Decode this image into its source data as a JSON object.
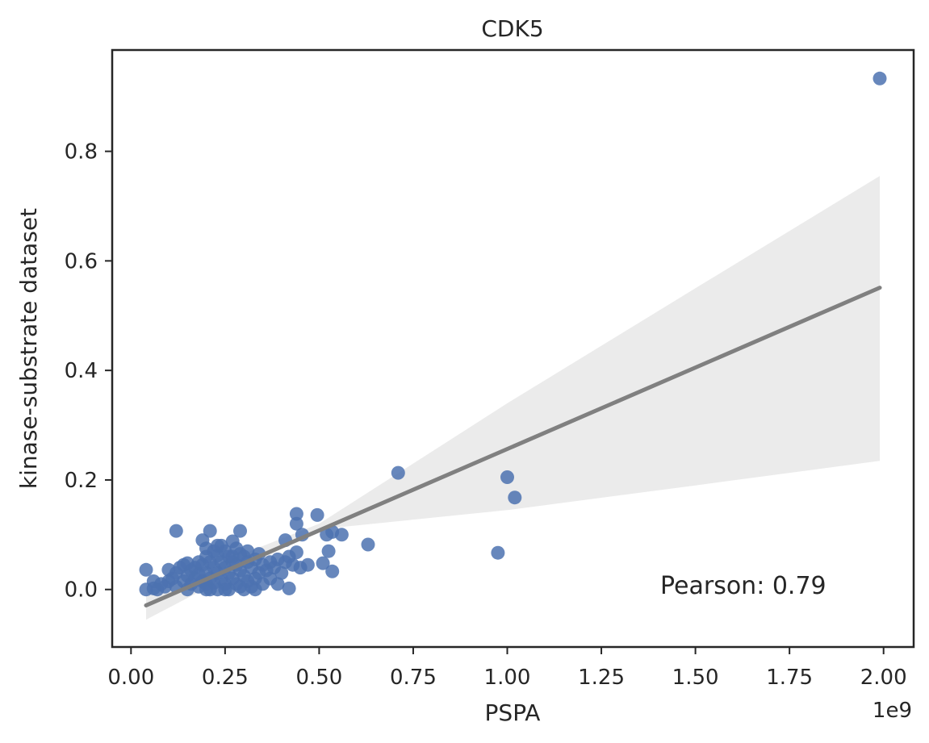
{
  "chart_data": {
    "type": "scatter",
    "title": "CDK5",
    "xlabel": "PSPA",
    "ylabel": "kinase-substrate dataset",
    "x_offset_label": "1e9",
    "annotation": "Pearson: 0.79",
    "xlim": [
      -0.05,
      2.08
    ],
    "ylim": [
      -0.105,
      0.985
    ],
    "x_ticks": [
      0.0,
      0.25,
      0.5,
      0.75,
      1.0,
      1.25,
      1.5,
      1.75,
      2.0
    ],
    "x_tick_labels": [
      "0.00",
      "0.25",
      "0.50",
      "0.75",
      "1.00",
      "1.25",
      "1.50",
      "1.75",
      "2.00"
    ],
    "y_ticks": [
      0.0,
      0.2,
      0.4,
      0.6,
      0.8
    ],
    "y_tick_labels": [
      "0.0",
      "0.2",
      "0.4",
      "0.6",
      "0.8"
    ],
    "grid": false,
    "colors": {
      "points": "#4C72B0",
      "fit_line": "#808080",
      "ci_band": "#EBEBEB",
      "axes": "#262626"
    },
    "regression": {
      "x_range": [
        0.04,
        1.99
      ],
      "line": [
        [
          0.04,
          -0.029
        ],
        [
          1.99,
          0.551
        ]
      ],
      "ci_band": {
        "x": [
          0.04,
          0.5,
          1.0,
          1.5,
          1.99
        ],
        "lower": [
          -0.055,
          0.11,
          0.145,
          0.19,
          0.235
        ],
        "upper": [
          -0.005,
          0.12,
          0.34,
          0.55,
          0.755
        ]
      }
    },
    "points": [
      [
        1.99,
        0.933
      ],
      [
        0.71,
        0.213
      ],
      [
        1.0,
        0.205
      ],
      [
        1.02,
        0.168
      ],
      [
        0.975,
        0.067
      ],
      [
        0.63,
        0.082
      ],
      [
        0.44,
        0.138
      ],
      [
        0.495,
        0.136
      ],
      [
        0.44,
        0.12
      ],
      [
        0.52,
        0.1
      ],
      [
        0.535,
        0.105
      ],
      [
        0.56,
        0.1
      ],
      [
        0.455,
        0.1
      ],
      [
        0.525,
        0.07
      ],
      [
        0.51,
        0.048
      ],
      [
        0.535,
        0.033
      ],
      [
        0.47,
        0.045
      ],
      [
        0.45,
        0.04
      ],
      [
        0.41,
        0.09
      ],
      [
        0.42,
        0.002
      ],
      [
        0.39,
        0.01
      ],
      [
        0.44,
        0.068
      ],
      [
        0.12,
        0.107
      ],
      [
        0.21,
        0.107
      ],
      [
        0.29,
        0.107
      ],
      [
        0.19,
        0.09
      ],
      [
        0.27,
        0.088
      ],
      [
        0.04,
        0.036
      ],
      [
        0.04,
        0.0
      ],
      [
        0.06,
        0.015
      ],
      [
        0.06,
        0.002
      ],
      [
        0.07,
        0.0
      ],
      [
        0.08,
        0.01
      ],
      [
        0.09,
        0.005
      ],
      [
        0.1,
        0.036
      ],
      [
        0.1,
        0.015
      ],
      [
        0.11,
        0.02
      ],
      [
        0.12,
        0.03
      ],
      [
        0.12,
        0.005
      ],
      [
        0.13,
        0.04
      ],
      [
        0.14,
        0.045
      ],
      [
        0.14,
        0.015
      ],
      [
        0.15,
        0.048
      ],
      [
        0.15,
        0.025
      ],
      [
        0.15,
        0.0
      ],
      [
        0.16,
        0.035
      ],
      [
        0.16,
        0.01
      ],
      [
        0.17,
        0.02
      ],
      [
        0.17,
        0.04
      ],
      [
        0.18,
        0.028
      ],
      [
        0.18,
        0.005
      ],
      [
        0.19,
        0.045
      ],
      [
        0.19,
        0.015
      ],
      [
        0.2,
        0.075
      ],
      [
        0.2,
        0.06
      ],
      [
        0.2,
        0.03
      ],
      [
        0.2,
        0.01
      ],
      [
        0.21,
        0.05
      ],
      [
        0.21,
        0.02
      ],
      [
        0.21,
        0.0
      ],
      [
        0.22,
        0.07
      ],
      [
        0.22,
        0.04
      ],
      [
        0.22,
        0.012
      ],
      [
        0.23,
        0.062
      ],
      [
        0.23,
        0.03
      ],
      [
        0.23,
        0.0
      ],
      [
        0.24,
        0.08
      ],
      [
        0.24,
        0.05
      ],
      [
        0.24,
        0.02
      ],
      [
        0.25,
        0.07
      ],
      [
        0.25,
        0.04
      ],
      [
        0.25,
        0.01
      ],
      [
        0.26,
        0.06
      ],
      [
        0.26,
        0.03
      ],
      [
        0.26,
        0.0
      ],
      [
        0.27,
        0.05
      ],
      [
        0.27,
        0.02
      ],
      [
        0.28,
        0.075
      ],
      [
        0.28,
        0.045
      ],
      [
        0.28,
        0.01
      ],
      [
        0.29,
        0.065
      ],
      [
        0.29,
        0.035
      ],
      [
        0.29,
        0.005
      ],
      [
        0.3,
        0.06
      ],
      [
        0.3,
        0.025
      ],
      [
        0.31,
        0.05
      ],
      [
        0.31,
        0.015
      ],
      [
        0.32,
        0.04
      ],
      [
        0.32,
        0.005
      ],
      [
        0.33,
        0.055
      ],
      [
        0.33,
        0.02
      ],
      [
        0.34,
        0.065
      ],
      [
        0.34,
        0.03
      ],
      [
        0.35,
        0.045
      ],
      [
        0.35,
        0.01
      ],
      [
        0.36,
        0.035
      ],
      [
        0.37,
        0.05
      ],
      [
        0.37,
        0.02
      ],
      [
        0.38,
        0.04
      ],
      [
        0.39,
        0.055
      ],
      [
        0.4,
        0.03
      ],
      [
        0.41,
        0.05
      ],
      [
        0.42,
        0.06
      ],
      [
        0.43,
        0.045
      ],
      [
        0.2,
        0.0
      ],
      [
        0.25,
        0.0
      ],
      [
        0.3,
        0.0
      ],
      [
        0.33,
        0.0
      ],
      [
        0.18,
        0.05
      ],
      [
        0.27,
        0.06
      ],
      [
        0.31,
        0.07
      ],
      [
        0.23,
        0.08
      ]
    ]
  }
}
